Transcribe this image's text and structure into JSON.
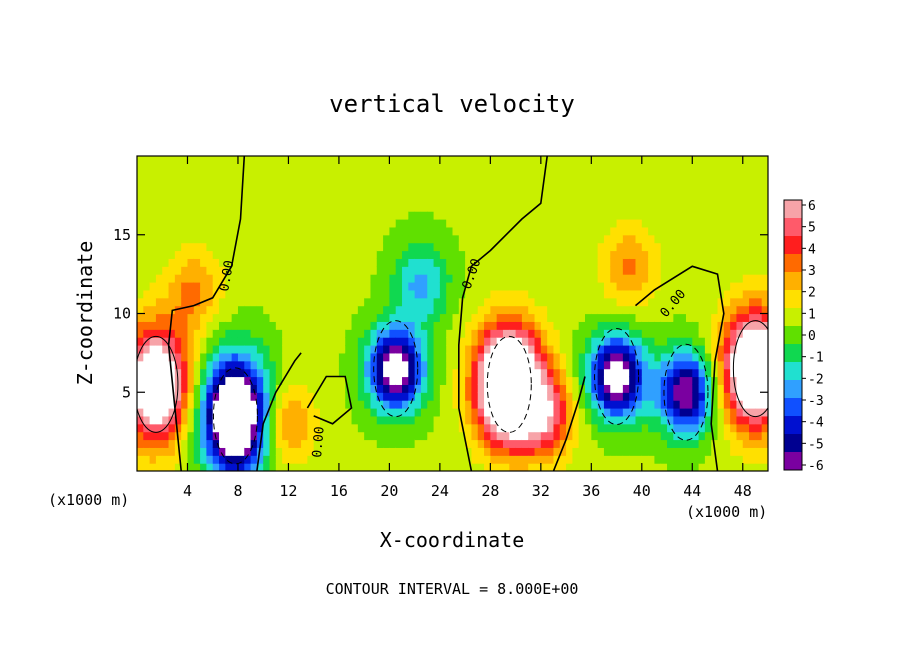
{
  "chart_data": {
    "type": "heatmap",
    "title": "vertical velocity",
    "xlabel": "X-coordinate",
    "ylabel": "Z-coordinate",
    "x_unit_left": "(x1000 m)",
    "x_unit_right": "(x1000 m)",
    "footer": "CONTOUR INTERVAL = 8.000E+00",
    "xlim": [
      0,
      50
    ],
    "ylim": [
      0,
      20
    ],
    "x_ticks": [
      "4",
      "8",
      "12",
      "16",
      "20",
      "24",
      "28",
      "32",
      "36",
      "40",
      "44",
      "48"
    ],
    "y_ticks": [
      "5",
      "10",
      "15"
    ],
    "colorbar": {
      "labels": [
        "6",
        "5",
        "4",
        "3",
        "2",
        "1",
        "0",
        "-1",
        "-2",
        "-3",
        "-4",
        "-5",
        "-6"
      ],
      "range": [
        -6,
        6
      ],
      "colors": [
        "#f7a3a8",
        "#ff5a6a",
        "#ff1e1e",
        "#ff6a00",
        "#ffb000",
        "#ffe000",
        "#c8f000",
        "#60e000",
        "#10d850",
        "#20e0d0",
        "#30a0ff",
        "#1050ff",
        "#0010d0",
        "#000090",
        "#7a00a0"
      ]
    },
    "contour_labels": [
      "0.00",
      "0.00",
      "0.00",
      "0.00"
    ],
    "features": [
      {
        "x": 1.5,
        "z": 5.5,
        "w": 9
      },
      {
        "x": 7.8,
        "z": 3.5,
        "w": -11
      },
      {
        "x": 11.8,
        "z": 3.0,
        "w": 3
      },
      {
        "x": 20.5,
        "z": 6.5,
        "w": -8
      },
      {
        "x": 22.5,
        "z": 12.0,
        "w": -3
      },
      {
        "x": 29.5,
        "z": 5.5,
        "w": 12
      },
      {
        "x": 32.5,
        "z": 3.5,
        "w": 4
      },
      {
        "x": 38.0,
        "z": 6.0,
        "w": -8
      },
      {
        "x": 43.5,
        "z": 5.0,
        "w": -7
      },
      {
        "x": 49.0,
        "z": 6.5,
        "w": 10
      },
      {
        "x": 39.0,
        "z": 13.0,
        "w": 2.5
      },
      {
        "x": 4.5,
        "z": 11.5,
        "w": 2.5
      }
    ]
  }
}
